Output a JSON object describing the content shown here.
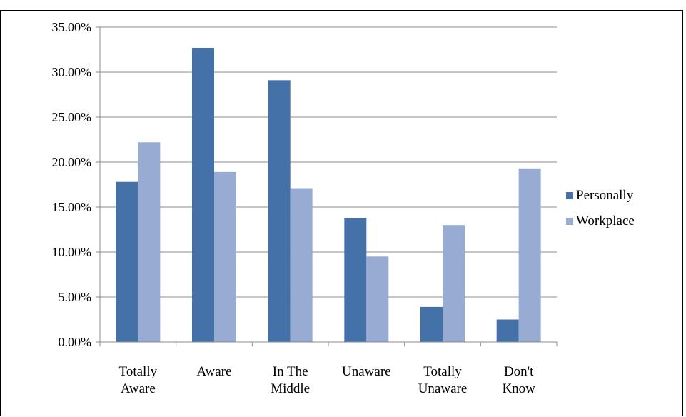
{
  "chart_data": {
    "type": "bar",
    "title": "",
    "xlabel": "",
    "ylabel": "",
    "categories": [
      [
        "Totally",
        "Aware"
      ],
      [
        "Aware"
      ],
      [
        "In The",
        "Middle"
      ],
      [
        "Unaware"
      ],
      [
        "Totally",
        "Unaware"
      ],
      [
        "Don't",
        "Know"
      ]
    ],
    "series": [
      {
        "name": "Personally",
        "color": "#4472a8",
        "values": [
          17.8,
          32.7,
          29.1,
          13.8,
          3.9,
          2.5
        ]
      },
      {
        "name": "Workplace",
        "color": "#97abd3",
        "values": [
          22.2,
          18.9,
          17.1,
          9.5,
          13.0,
          19.3
        ]
      }
    ],
    "ylim": [
      0,
      35
    ],
    "yticks": [
      0,
      5,
      10,
      15,
      20,
      25,
      30,
      35
    ],
    "ytick_labels": [
      "0.00%",
      "5.00%",
      "10.00%",
      "15.00%",
      "20.00%",
      "25.00%",
      "30.00%",
      "35.00%"
    ],
    "grid": true,
    "legend_position": "right"
  }
}
